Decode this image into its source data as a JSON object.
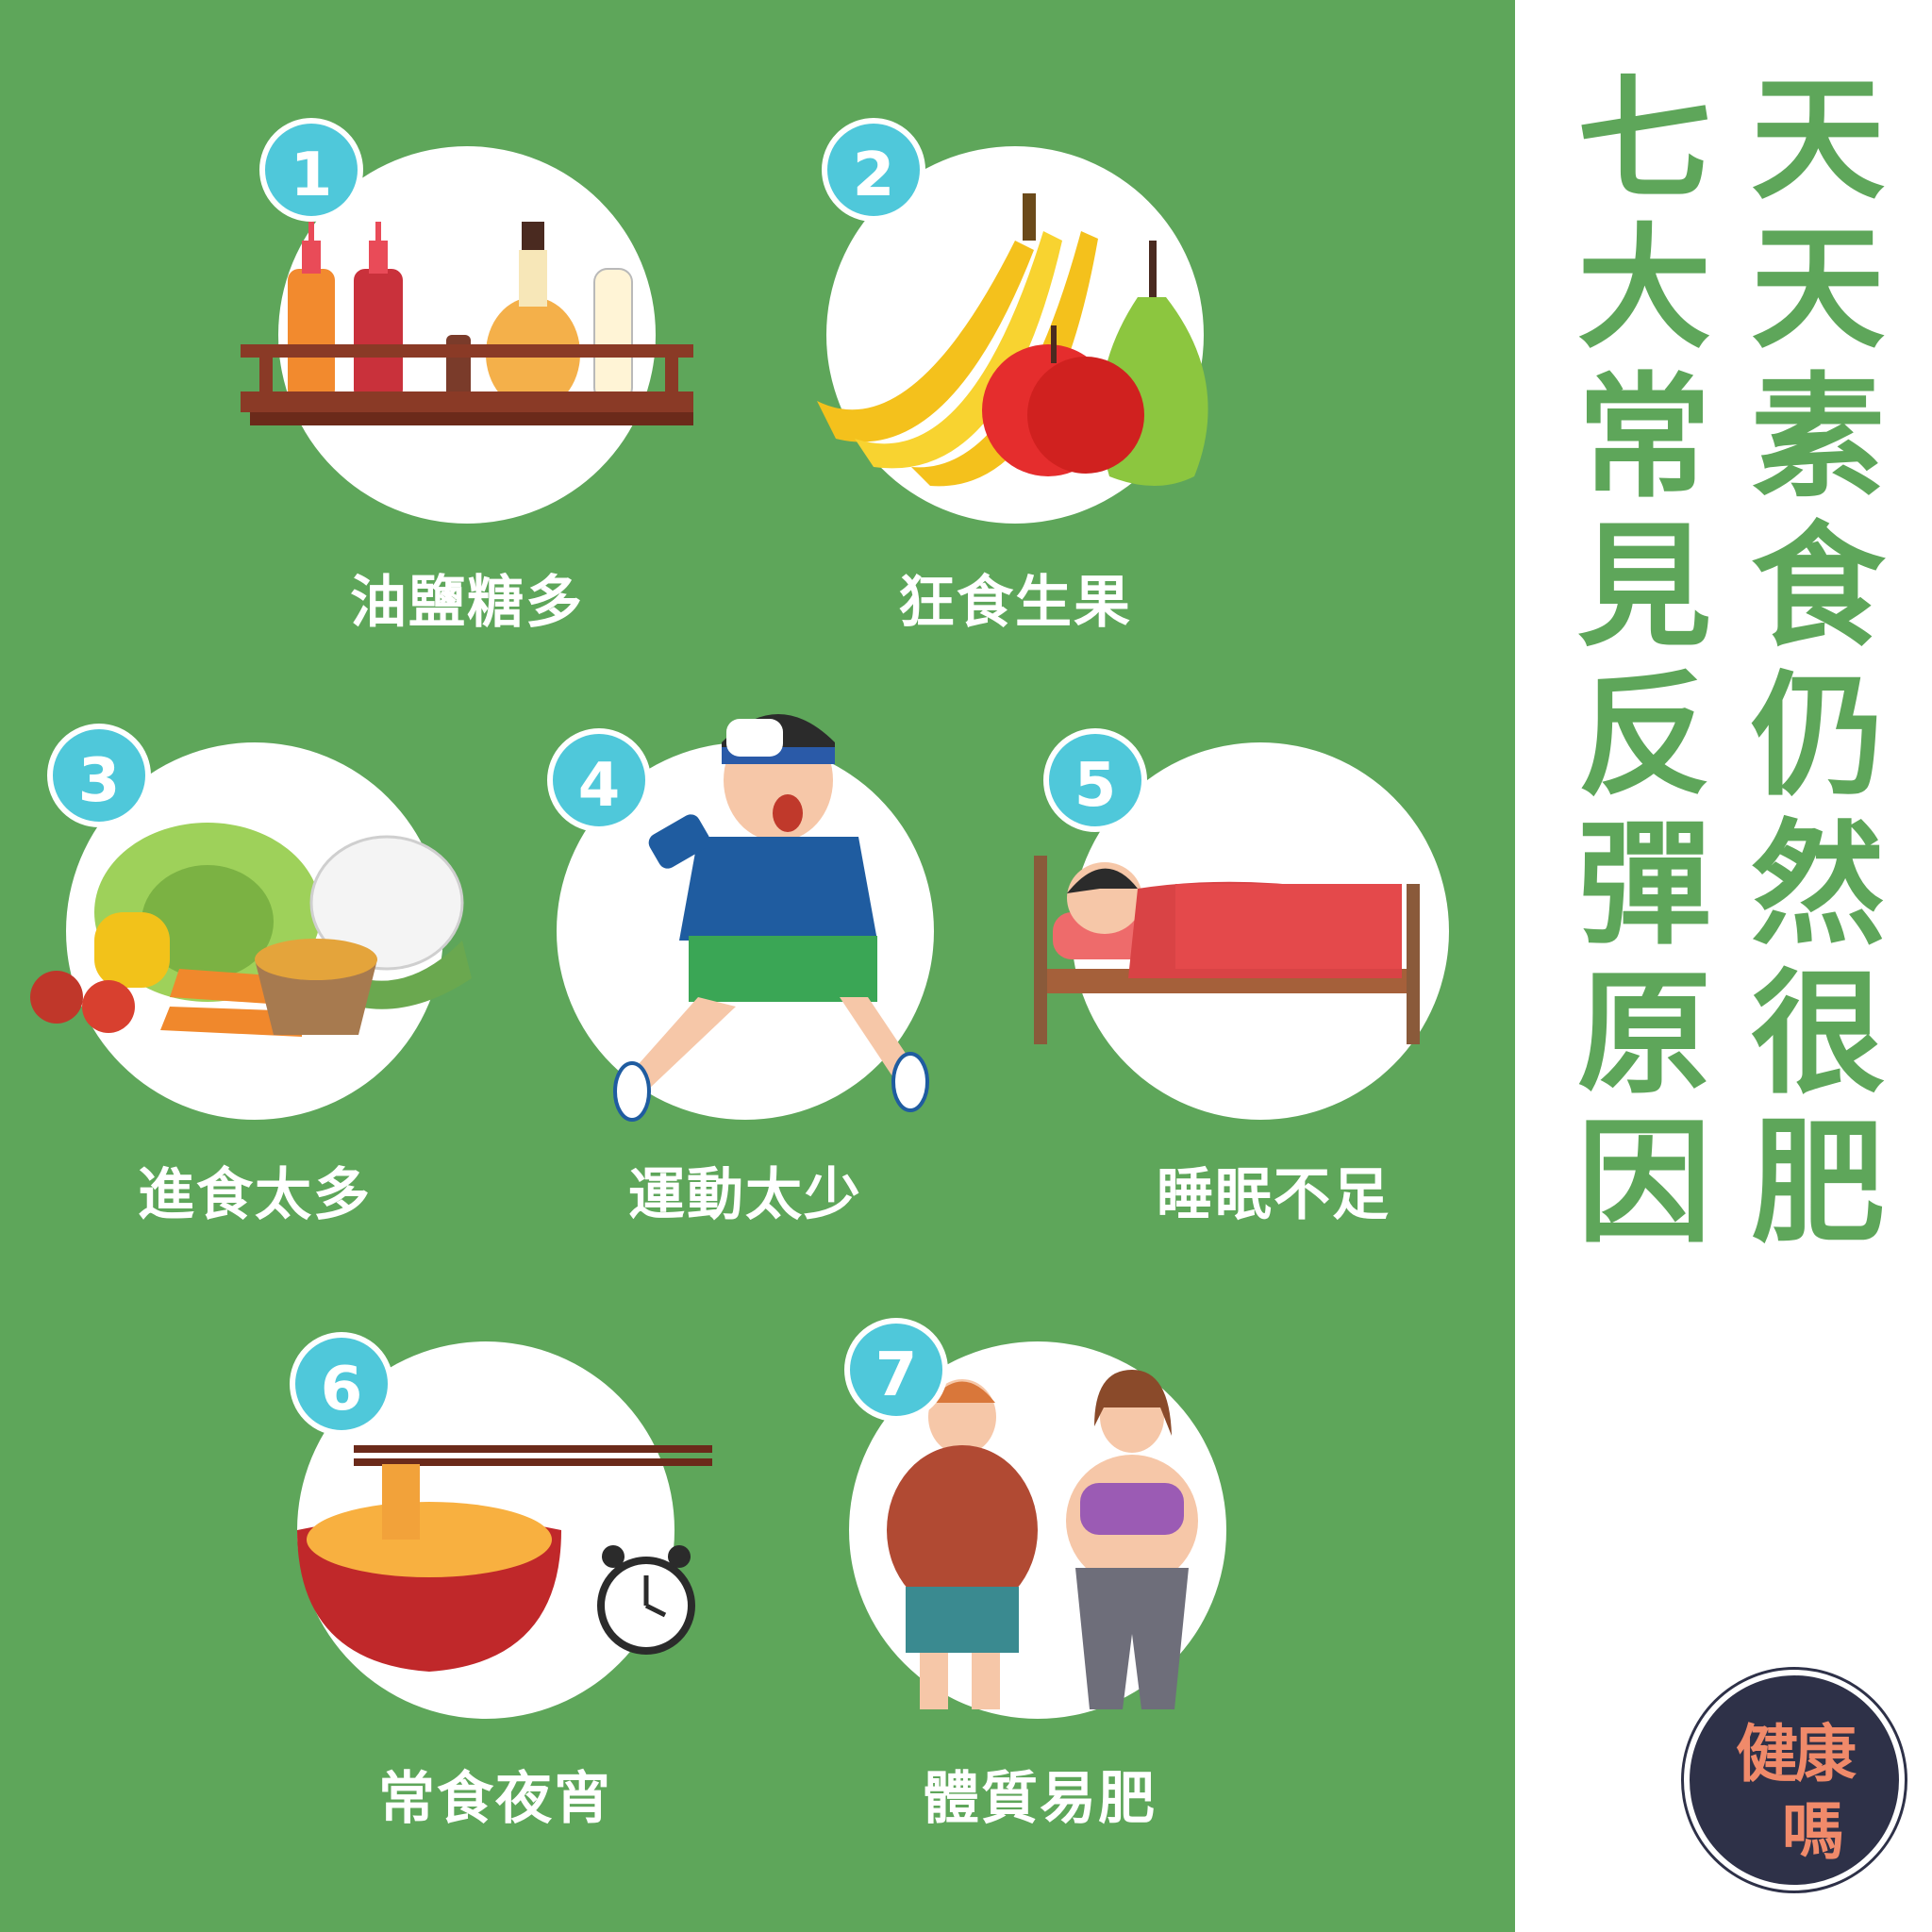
{
  "title": {
    "line1": [
      "天",
      "天",
      "素",
      "食",
      "仍",
      "然",
      "很",
      "肥"
    ],
    "line2": [
      "七",
      "大",
      "常",
      "見",
      "反",
      "彈",
      "原",
      "因"
    ]
  },
  "items": [
    {
      "number": "1",
      "label": "油鹽糖多"
    },
    {
      "number": "2",
      "label": "狂食生果"
    },
    {
      "number": "3",
      "label": "進食太多"
    },
    {
      "number": "4",
      "label": "運動太少"
    },
    {
      "number": "5",
      "label": "睡眠不足"
    },
    {
      "number": "6",
      "label": "常食夜宵"
    },
    {
      "number": "7",
      "label": "體質易肥"
    }
  ],
  "logo": {
    "line1": "健康",
    "line2": "嗎"
  },
  "colors": {
    "green": "#5ea65a",
    "badge": "#4fc8da",
    "white": "#ffffff",
    "logo_bg": "#2e3148",
    "logo_text": "#f08a6a"
  }
}
